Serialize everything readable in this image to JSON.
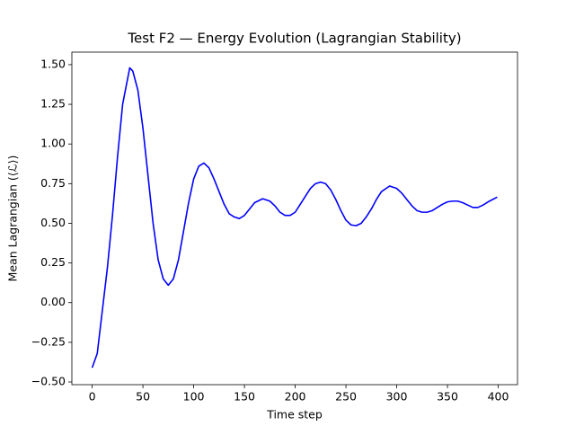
{
  "chart_data": {
    "type": "line",
    "title": "Test F2 — Energy Evolution (Lagrangian Stability)",
    "x_label": "Time step",
    "y_label": "Mean Lagrangian (⟨ℒ⟩)",
    "x": [
      0,
      5,
      10,
      15,
      20,
      25,
      30,
      37,
      40,
      45,
      50,
      55,
      60,
      65,
      70,
      75,
      80,
      85,
      90,
      95,
      100,
      105,
      110,
      115,
      120,
      125,
      130,
      135,
      140,
      145,
      150,
      155,
      160,
      168,
      175,
      180,
      185,
      190,
      195,
      200,
      205,
      210,
      215,
      220,
      225,
      230,
      235,
      240,
      245,
      250,
      255,
      260,
      265,
      270,
      275,
      280,
      285,
      293,
      300,
      305,
      310,
      315,
      320,
      325,
      330,
      335,
      340,
      345,
      350,
      355,
      360,
      365,
      370,
      375,
      380,
      385,
      390,
      399
    ],
    "series": [
      {
        "name": "Mean Lagrangian",
        "color": "#0000ff",
        "values": [
          -0.41,
          -0.32,
          -0.05,
          0.22,
          0.55,
          0.92,
          1.25,
          1.48,
          1.46,
          1.34,
          1.1,
          0.8,
          0.5,
          0.27,
          0.15,
          0.11,
          0.15,
          0.27,
          0.45,
          0.63,
          0.78,
          0.86,
          0.88,
          0.85,
          0.78,
          0.7,
          0.62,
          0.56,
          0.54,
          0.53,
          0.55,
          0.59,
          0.63,
          0.655,
          0.64,
          0.61,
          0.57,
          0.55,
          0.55,
          0.57,
          0.62,
          0.67,
          0.72,
          0.75,
          0.76,
          0.75,
          0.71,
          0.65,
          0.58,
          0.52,
          0.49,
          0.485,
          0.5,
          0.54,
          0.59,
          0.65,
          0.7,
          0.735,
          0.72,
          0.69,
          0.65,
          0.61,
          0.58,
          0.57,
          0.57,
          0.58,
          0.6,
          0.62,
          0.635,
          0.64,
          0.64,
          0.63,
          0.615,
          0.6,
          0.6,
          0.615,
          0.635,
          0.665
        ]
      }
    ],
    "xlim": [
      -20,
      419
    ],
    "xticks": [
      0,
      50,
      100,
      150,
      200,
      250,
      300,
      350,
      400
    ],
    "ylim": [
      -0.517,
      1.579
    ],
    "yticks": [
      {
        "value": -0.5,
        "label": "−0.50"
      },
      {
        "value": -0.25,
        "label": "−0.25"
      },
      {
        "value": 0,
        "label": "0.00"
      },
      {
        "value": 0.25,
        "label": "0.25"
      },
      {
        "value": 0.5,
        "label": "0.50"
      },
      {
        "value": 0.75,
        "label": "0.75"
      },
      {
        "value": 1.0,
        "label": "1.00"
      },
      {
        "value": 1.25,
        "label": "1.25"
      },
      {
        "value": 1.5,
        "label": "1.50"
      }
    ],
    "grid": false
  }
}
